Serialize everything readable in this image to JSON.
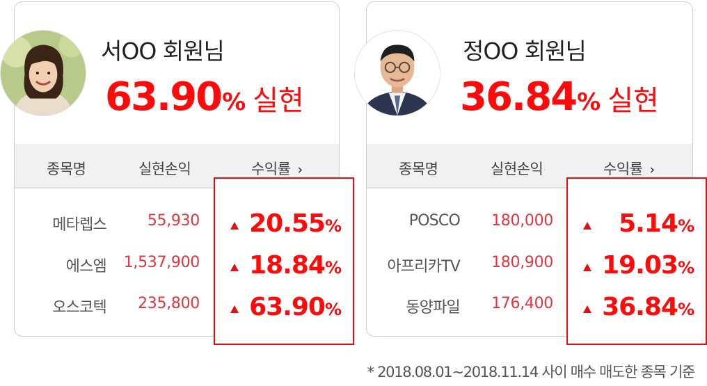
{
  "cards": [
    {
      "member": "서OO 회원님",
      "headline_value": "63.90",
      "headline_unit": "%",
      "headline_suffix": "실현",
      "columns": {
        "name": "종목명",
        "pl": "실현손익",
        "rate": "수익률",
        "rate_icon": "chevron-right-icon"
      },
      "rows": [
        {
          "name": "메타렙스",
          "pl": "55,930",
          "rate": "20.55",
          "unit": "%"
        },
        {
          "name": "에스엠",
          "pl": "1,537,900",
          "rate": "18.84",
          "unit": "%"
        },
        {
          "name": "오스코텍",
          "pl": "235,800",
          "rate": "63.90",
          "unit": "%"
        }
      ]
    },
    {
      "member": "정OO 회원님",
      "headline_value": "36.84",
      "headline_unit": "%",
      "headline_suffix": "실현",
      "columns": {
        "name": "종목명",
        "pl": "실현손익",
        "rate": "수익률",
        "rate_icon": "chevron-right-icon"
      },
      "rows": [
        {
          "name": "POSCO",
          "pl": "180,000",
          "rate": "5.14",
          "unit": "%"
        },
        {
          "name": "아프리카TV",
          "pl": "180,900",
          "rate": "19.03",
          "unit": "%"
        },
        {
          "name": "동양파일",
          "pl": "176,400",
          "rate": "36.84",
          "unit": "%"
        }
      ]
    }
  ],
  "footnote": "* 2018.08.01~2018.11.14 사이 매수 매도한 종목 기준",
  "colors": {
    "accent": "#ff0a0a",
    "pl_text": "#e5343d",
    "header_bg": "#f1f1f1",
    "border": "#cfcfcf"
  },
  "icons": {
    "trend": "triangle-up-icon"
  }
}
